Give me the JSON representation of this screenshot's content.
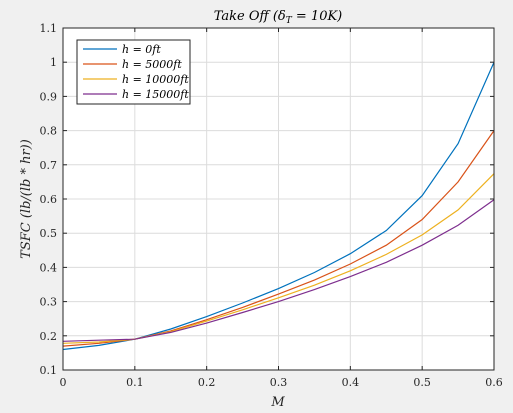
{
  "chart_data": {
    "type": "line",
    "title": "Take Off (δ",
    "title_sub": "T",
    "title_tail": " = 10K)",
    "xlabel": "M",
    "ylabel": "TSFC (lb/(lb * hr))",
    "xlim": [
      0,
      0.6
    ],
    "ylim": [
      0.1,
      1.1
    ],
    "xticks": [
      "0",
      "0.1",
      "0.2",
      "0.3",
      "0.4",
      "0.5",
      "0.6"
    ],
    "yticks": [
      "0.1",
      "0.2",
      "0.3",
      "0.4",
      "0.5",
      "0.6",
      "0.7",
      "0.8",
      "0.9",
      "1",
      "1.1"
    ],
    "grid": true,
    "legend_position": "top-left",
    "x": [
      0,
      0.05,
      0.1,
      0.15,
      0.2,
      0.25,
      0.3,
      0.35,
      0.4,
      0.45,
      0.5,
      0.55,
      0.6
    ],
    "series": [
      {
        "name": "h = 0ft",
        "color": "#0072bd",
        "values": [
          0.16,
          0.172,
          0.19,
          0.22,
          0.256,
          0.296,
          0.338,
          0.385,
          0.44,
          0.508,
          0.61,
          0.762,
          1.0
        ]
      },
      {
        "name": "h = 5000ft",
        "color": "#d95319",
        "values": [
          0.17,
          0.178,
          0.19,
          0.214,
          0.247,
          0.283,
          0.322,
          0.363,
          0.41,
          0.465,
          0.54,
          0.65,
          0.8
        ]
      },
      {
        "name": "h = 10000ft",
        "color": "#edb120",
        "values": [
          0.178,
          0.182,
          0.19,
          0.212,
          0.243,
          0.276,
          0.311,
          0.348,
          0.39,
          0.438,
          0.495,
          0.568,
          0.674
        ]
      },
      {
        "name": "h = 15000ft",
        "color": "#7e2f8e",
        "values": [
          0.184,
          0.187,
          0.19,
          0.21,
          0.237,
          0.268,
          0.3,
          0.335,
          0.373,
          0.415,
          0.465,
          0.523,
          0.598
        ]
      }
    ]
  }
}
